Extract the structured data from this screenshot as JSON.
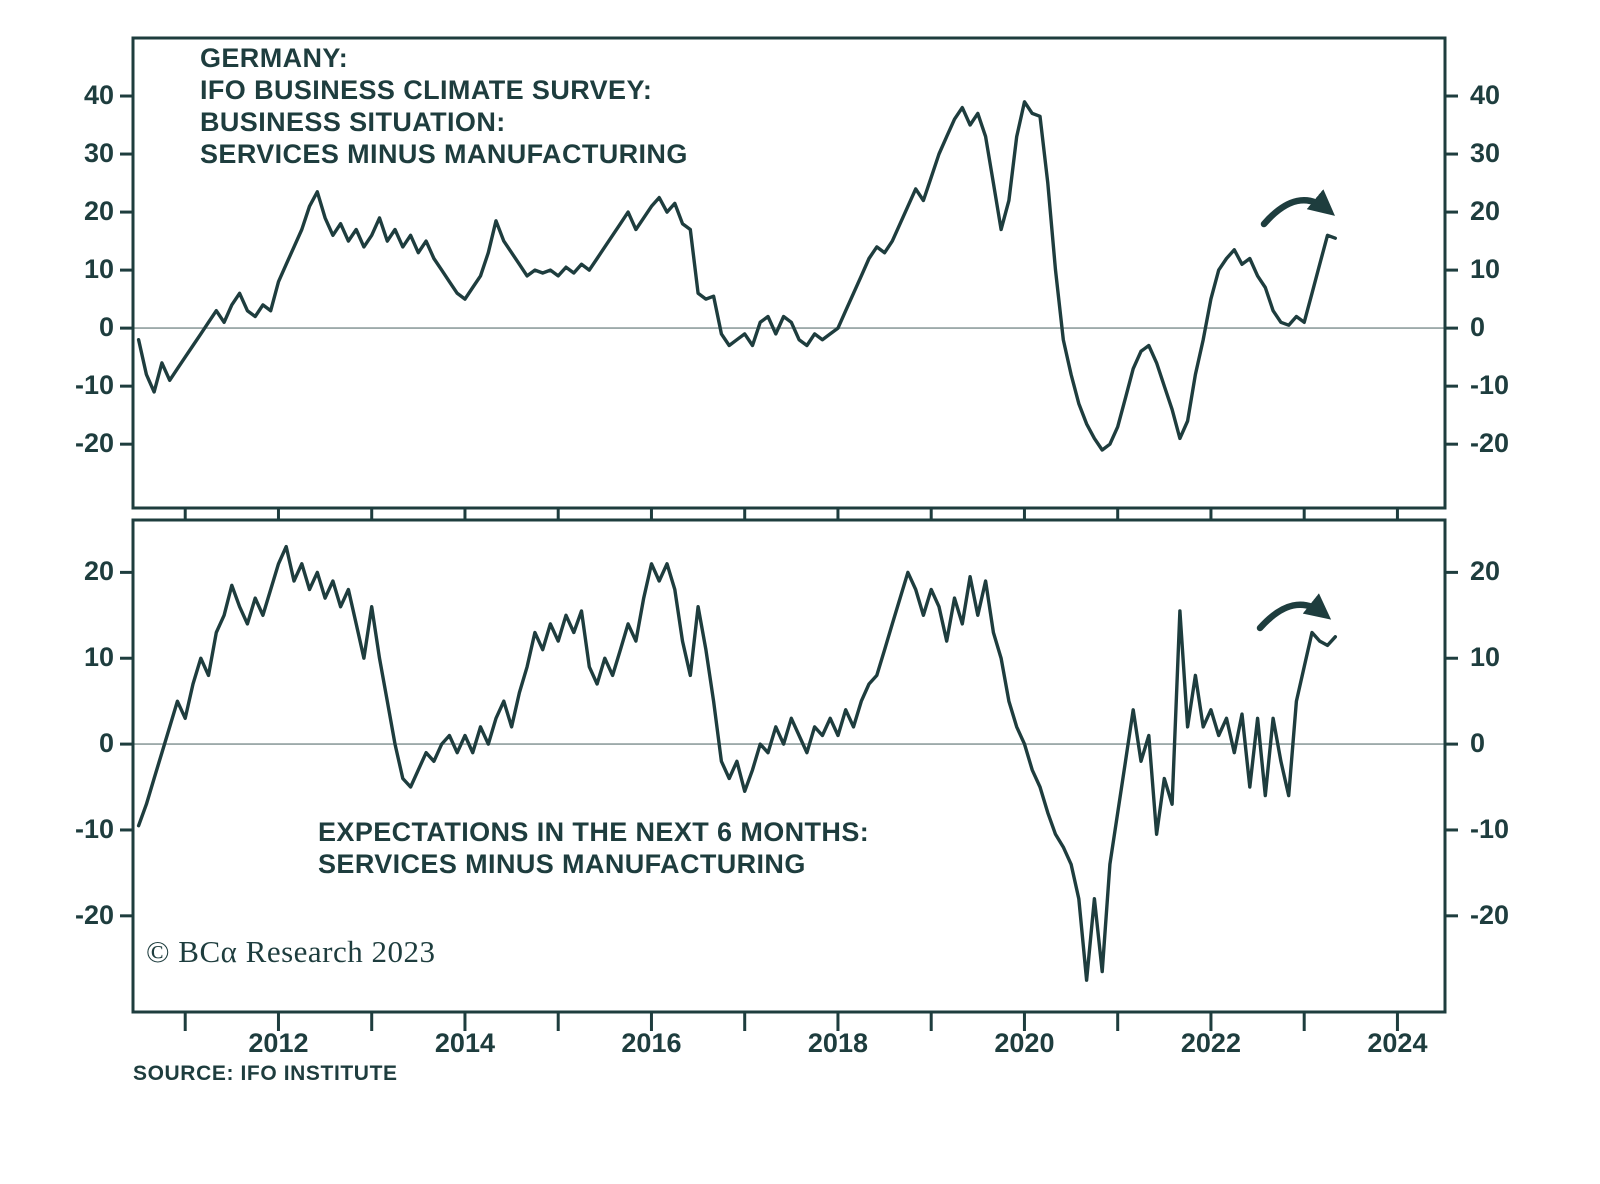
{
  "colors": {
    "line": "#1e3d3e",
    "text": "#1e3d3e",
    "zero_line": "#8f9e9e",
    "background": "#ffffff"
  },
  "footer": {
    "copyright": "© BCα Research 2023",
    "source": "SOURCE: IFO INSTITUTE"
  },
  "x_axis": {
    "xlim": [
      2010.44,
      2024.51
    ],
    "tick_years": [
      2011,
      2012,
      2013,
      2014,
      2015,
      2016,
      2017,
      2018,
      2019,
      2020,
      2021,
      2022,
      2023,
      2024
    ],
    "label_years": [
      "2012",
      "2014",
      "2016",
      "2018",
      "2020",
      "2022",
      "2024"
    ]
  },
  "chart_data": [
    {
      "type": "line",
      "panel": "top",
      "title_lines": [
        "GERMANY:",
        "IFO BUSINESS CLIMATE SURVEY:",
        "BUSINESS SITUATION:",
        "SERVICES MINUS MANUFACTURING"
      ],
      "yticks": [
        -20,
        -10,
        0,
        10,
        20,
        30,
        40
      ],
      "ylim": [
        -31,
        50
      ],
      "grid": "zero-line-only",
      "annotation": "curved-arrow-pointing-down-right-at-series-end",
      "frequency": "monthly",
      "x_start": 2010.5,
      "x_step": 0.0833333,
      "values": [
        -2,
        -8,
        -11,
        -6,
        -9,
        -7,
        -5,
        -3,
        -1,
        1,
        3,
        1,
        4,
        6,
        3,
        2,
        4,
        3,
        8,
        11,
        14,
        17,
        21,
        23.5,
        19,
        16,
        18,
        15,
        17,
        14,
        16,
        19,
        15,
        17,
        14,
        16,
        13,
        15,
        12,
        10,
        8,
        6,
        5,
        7,
        9,
        13,
        18.5,
        15,
        13,
        11,
        9,
        10,
        9.5,
        10,
        9,
        10.5,
        9.5,
        11,
        10,
        12,
        14,
        16,
        18,
        20,
        17,
        19,
        21,
        22.5,
        20,
        21.5,
        18,
        17,
        6,
        5,
        5.5,
        -1,
        -3,
        -2,
        -1,
        -3,
        1,
        2,
        -1,
        2,
        1,
        -2,
        -3,
        -1,
        -2,
        -1,
        0,
        3,
        6,
        9,
        12,
        14,
        13,
        15,
        18,
        21,
        24,
        22,
        26,
        30,
        33,
        36,
        38,
        35,
        37,
        33,
        25,
        17,
        22,
        33,
        39,
        37,
        36.5,
        25,
        10,
        -2,
        -8,
        -13,
        -16.5,
        -19,
        -21,
        -20,
        -17,
        -12,
        -7,
        -4,
        -3,
        -6,
        -10,
        -14,
        -19,
        -16,
        -8,
        -2,
        5,
        10,
        12,
        13.5,
        11,
        12,
        9,
        7,
        3,
        1,
        0.5,
        2,
        1,
        6,
        11,
        16,
        15.5
      ]
    },
    {
      "type": "line",
      "panel": "bottom",
      "title_lines": [
        "EXPECTATIONS IN THE NEXT 6 MONTHS:",
        "SERVICES MINUS MANUFACTURING"
      ],
      "yticks": [
        -20,
        -10,
        0,
        10,
        20
      ],
      "ylim": [
        -31.2,
        26.1
      ],
      "grid": "zero-line-only",
      "annotation": "curved-arrow-pointing-down-right-at-series-end",
      "frequency": "monthly",
      "x_start": 2010.5,
      "x_step": 0.0833333,
      "values": [
        -9.5,
        -7,
        -4,
        -1,
        2,
        5,
        3,
        7,
        10,
        8,
        13,
        15,
        18.5,
        16,
        14,
        17,
        15,
        18,
        21,
        23,
        19,
        21,
        18,
        20,
        17,
        19,
        16,
        18,
        14,
        10,
        16,
        10,
        5,
        0,
        -4,
        -5,
        -3,
        -1,
        -2,
        0,
        1,
        -1,
        1,
        -1,
        2,
        0,
        3,
        5,
        2,
        6,
        9,
        13,
        11,
        14,
        12,
        15,
        13,
        15.5,
        9,
        7,
        10,
        8,
        11,
        14,
        12,
        17,
        21,
        19,
        21,
        18,
        12,
        8,
        16,
        11,
        5,
        -2,
        -4,
        -2,
        -5.5,
        -3,
        0,
        -1,
        2,
        0,
        3,
        1,
        -1,
        2,
        1,
        3,
        1,
        4,
        2,
        5,
        7,
        8,
        11,
        14,
        17,
        20,
        18,
        15,
        18,
        16,
        12,
        17,
        14,
        19.5,
        15,
        19,
        13,
        10,
        5,
        2,
        0,
        -3,
        -5,
        -8,
        -10.5,
        -12,
        -14,
        -18,
        -27.5,
        -18,
        -26.5,
        -14,
        -8,
        -2,
        4,
        -2,
        1,
        -10.5,
        -4,
        -7,
        15.5,
        2,
        8,
        2,
        4,
        1,
        3,
        -1,
        3.5,
        -5,
        3,
        -6,
        3,
        -2,
        -6,
        5,
        9,
        13,
        12,
        11.5,
        12.5
      ]
    }
  ]
}
